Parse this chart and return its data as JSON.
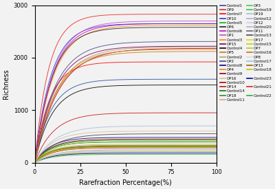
{
  "xlabel": "Rarefraction Percentage(%)",
  "ylabel": "Richness",
  "xlim": [
    0,
    100
  ],
  "ylim": [
    0,
    3000
  ],
  "xticks": [
    0,
    25,
    50,
    75,
    100
  ],
  "yticks": [
    0,
    1000,
    2000,
    3000
  ],
  "bg_color": "#f2f2f2",
  "series": [
    {
      "label": "Control1",
      "color": "#1f4ea1",
      "plateau": 1590,
      "k": 0.55
    },
    {
      "label": "Control7",
      "color": "#ff0000",
      "plateau": 1920,
      "k": 0.6
    },
    {
      "label": "Control5",
      "color": "#00bb00",
      "plateau": 300,
      "k": 0.65
    },
    {
      "label": "Control6",
      "color": "#cc00cc",
      "plateau": 2650,
      "k": 0.5
    },
    {
      "label": "Control3",
      "color": "#ff8800",
      "plateau": 2620,
      "k": 0.48
    },
    {
      "label": "Control4",
      "color": "#000000",
      "plateau": 1480,
      "k": 0.52
    },
    {
      "label": "Control2",
      "color": "#b8a070",
      "plateau": 2210,
      "k": 0.4
    },
    {
      "label": "Control8",
      "color": "#00008b",
      "plateau": 480,
      "k": 0.58
    },
    {
      "label": "Control9",
      "color": "#8b0000",
      "plateau": 450,
      "k": 0.55
    },
    {
      "label": "Control10",
      "color": "#aa0000",
      "plateau": 2180,
      "k": 0.38
    },
    {
      "label": "Control14",
      "color": "#007700",
      "plateau": 430,
      "k": 0.55
    },
    {
      "label": "Control11",
      "color": "#e8a080",
      "plateau": 350,
      "k": 0.58
    },
    {
      "label": "Control19",
      "color": "#44bb44",
      "plateau": 390,
      "k": 0.6
    },
    {
      "label": "Control12",
      "color": "#aaaadd",
      "plateau": 230,
      "k": 0.5
    },
    {
      "label": "Control20",
      "color": "#bbaacc",
      "plateau": 250,
      "k": 0.48
    },
    {
      "label": "Control13",
      "color": "#444444",
      "plateau": 550,
      "k": 0.45
    },
    {
      "label": "Control15",
      "color": "#cccc00",
      "plateau": 330,
      "k": 0.55
    },
    {
      "label": "Control16",
      "color": "#cc6622",
      "plateau": 290,
      "k": 0.52
    },
    {
      "label": "Control17",
      "color": "#99bbdd",
      "plateau": 200,
      "k": 0.5
    },
    {
      "label": "Control18",
      "color": "#aacc00",
      "plateau": 210,
      "k": 0.48
    },
    {
      "label": "Control23",
      "color": "#000099",
      "plateau": 180,
      "k": 0.55
    },
    {
      "label": "Control21",
      "color": "#dd2222",
      "plateau": 280,
      "k": 0.58
    },
    {
      "label": "Control22",
      "color": "#33aa33",
      "plateau": 160,
      "k": 0.52
    },
    {
      "label": "OP9",
      "color": "#ee2222",
      "plateau": 2830,
      "k": 0.65
    },
    {
      "label": "OP10",
      "color": "#3333cc",
      "plateau": 2650,
      "k": 0.55
    },
    {
      "label": "OP6",
      "color": "#222222",
      "plateau": 2580,
      "k": 0.52
    },
    {
      "label": "OP1",
      "color": "#cc44cc",
      "plateau": 2700,
      "k": 0.5
    },
    {
      "label": "OP15",
      "color": "#770055",
      "plateau": 2220,
      "k": 0.44
    },
    {
      "label": "OP5",
      "color": "#cc7700",
      "plateau": 2120,
      "k": 0.42
    },
    {
      "label": "OP2",
      "color": "#444488",
      "plateau": 2310,
      "k": 0.44
    },
    {
      "label": "OP4",
      "color": "#dd8833",
      "plateau": 2160,
      "k": 0.42
    },
    {
      "label": "OP16",
      "color": "#ddbb99",
      "plateau": 600,
      "k": 0.5
    },
    {
      "label": "OP14",
      "color": "#cc1111",
      "plateau": 950,
      "k": 0.48
    },
    {
      "label": "OP18",
      "color": "#338833",
      "plateau": 400,
      "k": 0.55
    },
    {
      "label": "OP3",
      "color": "#44cc44",
      "plateau": 330,
      "k": 0.58
    },
    {
      "label": "OP19",
      "color": "#aabbdd",
      "plateau": 700,
      "k": 0.45
    },
    {
      "label": "OP12",
      "color": "#ccccdd",
      "plateau": 250,
      "k": 0.48
    },
    {
      "label": "OP11",
      "color": "#666666",
      "plateau": 310,
      "k": 0.52
    },
    {
      "label": "OP17",
      "color": "#dddd00",
      "plateau": 290,
      "k": 0.58
    },
    {
      "label": "OP7",
      "color": "#aacc22",
      "plateau": 400,
      "k": 0.55
    },
    {
      "label": "OP8",
      "color": "#ddddcc",
      "plateau": 220,
      "k": 0.5
    },
    {
      "label": "OP13",
      "color": "#aa5500",
      "plateau": 320,
      "k": 0.58
    }
  ],
  "legend_col1": [
    "Control1",
    "Control7",
    "Control5",
    "Control6",
    "Control3",
    "Control4",
    "Control2",
    "Control8",
    "Control9",
    "Control10",
    "Control14",
    "Control11",
    "Control19",
    "Control12",
    "Control20",
    "Control13",
    "Control15",
    "Control16",
    "Control17",
    "Control18",
    "Control23",
    "Control21",
    "Control22"
  ],
  "legend_col2": [
    "OP9",
    "OP10",
    "OP6",
    "OP1",
    "OP15",
    "OP5",
    "OP2",
    "OP4",
    "OP16",
    "OP14",
    "OP18",
    "OP3",
    "OP19",
    "OP12",
    "OP11",
    "OP17",
    "OP7",
    "OP8",
    "OP13"
  ]
}
